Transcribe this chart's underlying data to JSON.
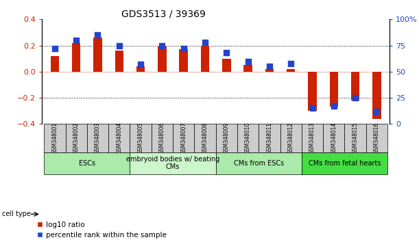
{
  "title": "GDS3513 / 39369",
  "samples": [
    "GSM348001",
    "GSM348002",
    "GSM348003",
    "GSM348004",
    "GSM348005",
    "GSM348006",
    "GSM348007",
    "GSM348008",
    "GSM348009",
    "GSM348010",
    "GSM348011",
    "GSM348012",
    "GSM348013",
    "GSM348014",
    "GSM348015",
    "GSM348016"
  ],
  "log10_ratio": [
    0.12,
    0.22,
    0.26,
    0.16,
    0.04,
    0.19,
    0.17,
    0.2,
    0.1,
    0.05,
    0.02,
    0.02,
    -0.3,
    -0.27,
    -0.22,
    -0.36
  ],
  "percentile_rank": [
    72,
    80,
    85,
    75,
    57,
    75,
    72,
    78,
    68,
    60,
    55,
    58,
    15,
    17,
    25,
    12
  ],
  "cell_type_groups": [
    {
      "label": "ESCs",
      "start": 0,
      "end": 3,
      "color": "#aaeaaa"
    },
    {
      "label": "embryoid bodies w/ beating\nCMs",
      "start": 4,
      "end": 7,
      "color": "#ccf5cc"
    },
    {
      "label": "CMs from ESCs",
      "start": 8,
      "end": 11,
      "color": "#aaeaaa"
    },
    {
      "label": "CMs from fetal hearts",
      "start": 12,
      "end": 15,
      "color": "#44dd44"
    }
  ],
  "bar_color_red": "#cc2200",
  "bar_color_blue": "#2244cc",
  "ylim_left": [
    -0.4,
    0.4
  ],
  "ylim_right": [
    0,
    100
  ],
  "yticks_left": [
    -0.4,
    -0.2,
    0.0,
    0.2,
    0.4
  ],
  "yticks_right": [
    0,
    25,
    50,
    75,
    100
  ],
  "ytick_labels_right": [
    "0",
    "25",
    "50",
    "75",
    "100%"
  ],
  "dotted_hlines": [
    0.2,
    -0.2
  ],
  "red_hline": 0.0,
  "legend_red": "log10 ratio",
  "legend_blue": "percentile rank within the sample",
  "cell_type_label": "cell type",
  "bar_width": 0.4,
  "blue_square_size": 35,
  "gray_box_color": "#cccccc",
  "title_fontsize": 10,
  "tick_fontsize": 8,
  "sample_fontsize": 5.5,
  "group_fontsize": 7,
  "legend_fontsize": 7.5
}
